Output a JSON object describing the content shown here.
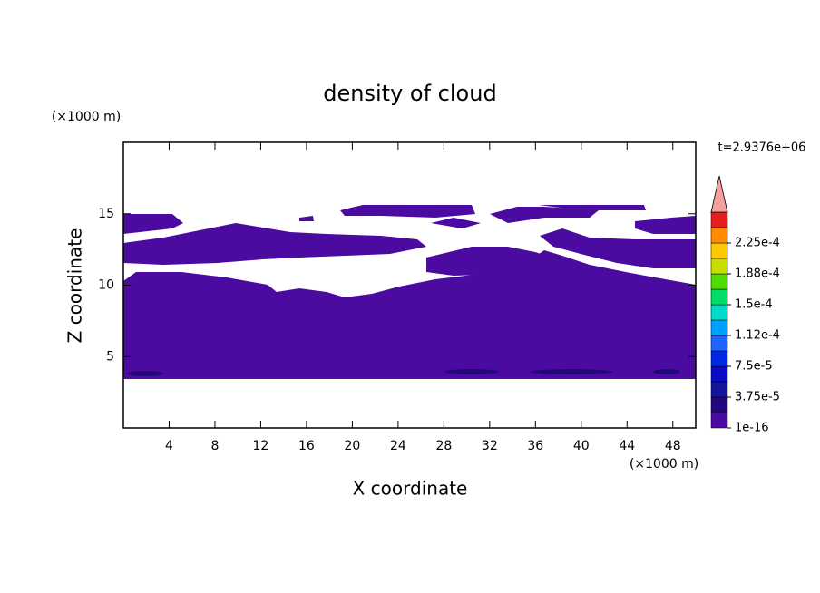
{
  "chart_data": {
    "type": "contour",
    "title": "density of cloud",
    "xlabel": "X coordinate",
    "ylabel": "Z coordinate",
    "xunit": "(×1000 m)",
    "yunit": "(×1000 m)",
    "time_label": "t=2.9376e+06",
    "xlim": [
      0,
      50
    ],
    "xticks": [
      4,
      8,
      12,
      16,
      20,
      24,
      28,
      32,
      36,
      40,
      44,
      48
    ],
    "ylim": [
      0,
      20
    ],
    "yticks": [
      5,
      10,
      15
    ],
    "colorbar": {
      "colors": [
        "#4b0aa0",
        "#23087c",
        "#14149c",
        "#0a0ac8",
        "#0028e6",
        "#1e64ff",
        "#00a0ff",
        "#00dcc8",
        "#00dc64",
        "#50dc00",
        "#c8dc00",
        "#ffc800",
        "#ff8c00",
        "#e61e1e"
      ],
      "over_color": "#f5a0a0",
      "ticks": [
        {
          "value": 1e-16,
          "label": "1e-16"
        },
        {
          "value": 3.75e-05,
          "label": "3.75e-5"
        },
        {
          "value": 7.5e-05,
          "label": "7.5e-5"
        },
        {
          "value": 0.000112,
          "label": "1.12e-4"
        },
        {
          "value": 0.00015,
          "label": "1.5e-4"
        },
        {
          "value": 0.000188,
          "label": "1.88e-4"
        },
        {
          "value": 0.000225,
          "label": "2.25e-4"
        }
      ]
    }
  }
}
